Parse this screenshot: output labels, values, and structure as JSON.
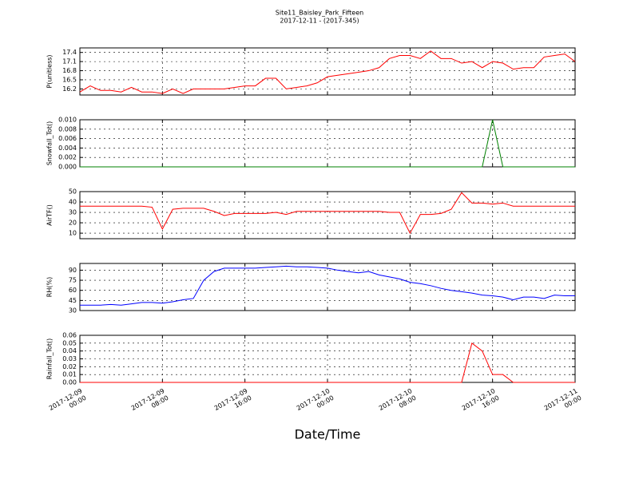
{
  "chart_data": [
    {
      "type": "line",
      "title": "Site11_Baisley_Park_Fifteen",
      "subtitle": "2017-12-11 - (2017-345)",
      "ylabel": "P(unitless)",
      "color": "#ff0000",
      "grid": true,
      "xlim": [
        "2017-12-09 00:00",
        "2017-12-11 00:00"
      ],
      "ylim": [
        16.0,
        17.55
      ],
      "yticks": [
        16.2,
        16.5,
        16.8,
        17.1,
        17.4
      ],
      "x": [
        "2017-12-09 00:00",
        "2017-12-09 01:00",
        "2017-12-09 02:00",
        "2017-12-09 03:00",
        "2017-12-09 04:00",
        "2017-12-09 05:00",
        "2017-12-09 06:00",
        "2017-12-09 07:00",
        "2017-12-09 08:00",
        "2017-12-09 09:00",
        "2017-12-09 10:00",
        "2017-12-09 11:00",
        "2017-12-09 12:00",
        "2017-12-09 13:00",
        "2017-12-09 14:00",
        "2017-12-09 15:00",
        "2017-12-09 16:00",
        "2017-12-09 17:00",
        "2017-12-09 18:00",
        "2017-12-09 19:00",
        "2017-12-09 20:00",
        "2017-12-09 21:00",
        "2017-12-09 22:00",
        "2017-12-09 23:00",
        "2017-12-10 00:00",
        "2017-12-10 01:00",
        "2017-12-10 02:00",
        "2017-12-10 03:00",
        "2017-12-10 04:00",
        "2017-12-10 05:00",
        "2017-12-10 06:00",
        "2017-12-10 07:00",
        "2017-12-10 08:00",
        "2017-12-10 09:00",
        "2017-12-10 10:00",
        "2017-12-10 11:00",
        "2017-12-10 12:00",
        "2017-12-10 13:00",
        "2017-12-10 14:00",
        "2017-12-10 15:00",
        "2017-12-10 16:00",
        "2017-12-10 17:00",
        "2017-12-10 18:00",
        "2017-12-10 19:00",
        "2017-12-10 20:00",
        "2017-12-10 21:00",
        "2017-12-10 22:00",
        "2017-12-10 23:00",
        "2017-12-11 00:00"
      ],
      "values": [
        16.1,
        16.3,
        16.15,
        16.15,
        16.1,
        16.25,
        16.1,
        16.1,
        16.05,
        16.2,
        16.05,
        16.2,
        16.2,
        16.2,
        16.2,
        16.25,
        16.3,
        16.3,
        16.55,
        16.55,
        16.2,
        16.25,
        16.3,
        16.4,
        16.6,
        16.65,
        16.7,
        16.75,
        16.8,
        16.9,
        17.2,
        17.3,
        17.3,
        17.2,
        17.45,
        17.2,
        17.2,
        17.05,
        17.1,
        16.9,
        17.1,
        17.05,
        16.85,
        16.9,
        16.9,
        17.25,
        17.3,
        17.35,
        17.1
      ]
    },
    {
      "type": "line",
      "ylabel": "Snowfall_Tot()",
      "color": "#008000",
      "grid": true,
      "xlim": [
        "2017-12-09 00:00",
        "2017-12-11 00:00"
      ],
      "ylim": [
        0,
        0.01
      ],
      "yticks": [
        {
          "value": 0,
          "label": "0.000"
        },
        0.002,
        0.004,
        0.006,
        0.008,
        {
          "value": 0.01,
          "label": "0.010"
        }
      ],
      "x": [
        "2017-12-09 00:00",
        "2017-12-09 01:00",
        "2017-12-09 02:00",
        "2017-12-09 03:00",
        "2017-12-09 04:00",
        "2017-12-09 05:00",
        "2017-12-09 06:00",
        "2017-12-09 07:00",
        "2017-12-09 08:00",
        "2017-12-09 09:00",
        "2017-12-09 10:00",
        "2017-12-09 11:00",
        "2017-12-09 12:00",
        "2017-12-09 13:00",
        "2017-12-09 14:00",
        "2017-12-09 15:00",
        "2017-12-09 16:00",
        "2017-12-09 17:00",
        "2017-12-09 18:00",
        "2017-12-09 19:00",
        "2017-12-09 20:00",
        "2017-12-09 21:00",
        "2017-12-09 22:00",
        "2017-12-09 23:00",
        "2017-12-10 00:00",
        "2017-12-10 01:00",
        "2017-12-10 02:00",
        "2017-12-10 03:00",
        "2017-12-10 04:00",
        "2017-12-10 05:00",
        "2017-12-10 06:00",
        "2017-12-10 07:00",
        "2017-12-10 08:00",
        "2017-12-10 09:00",
        "2017-12-10 10:00",
        "2017-12-10 11:00",
        "2017-12-10 12:00",
        "2017-12-10 13:00",
        "2017-12-10 14:00",
        "2017-12-10 15:00",
        "2017-12-10 16:00",
        "2017-12-10 17:00",
        "2017-12-10 18:00",
        "2017-12-10 19:00",
        "2017-12-10 20:00",
        "2017-12-10 21:00",
        "2017-12-10 22:00",
        "2017-12-10 23:00",
        "2017-12-11 00:00"
      ],
      "values": [
        0,
        0,
        0,
        0,
        0,
        0,
        0,
        0,
        0,
        0,
        0,
        0,
        0,
        0,
        0,
        0,
        0,
        0,
        0,
        0,
        0,
        0,
        0,
        0,
        0,
        0,
        0,
        0,
        0,
        0,
        0,
        0,
        0,
        0,
        0,
        0,
        0,
        0,
        0,
        0,
        0.01,
        0,
        0,
        0,
        0,
        0,
        0,
        0,
        0
      ]
    },
    {
      "type": "line",
      "ylabel": "AirTF()",
      "color": "#ff0000",
      "grid": true,
      "xlim": [
        "2017-12-09 00:00",
        "2017-12-11 00:00"
      ],
      "ylim": [
        4.7,
        50
      ],
      "yticks": [
        10,
        20,
        30,
        40,
        50
      ],
      "x": [
        "2017-12-09 00:00",
        "2017-12-09 01:00",
        "2017-12-09 02:00",
        "2017-12-09 03:00",
        "2017-12-09 04:00",
        "2017-12-09 05:00",
        "2017-12-09 06:00",
        "2017-12-09 07:00",
        "2017-12-09 08:00",
        "2017-12-09 09:00",
        "2017-12-09 10:00",
        "2017-12-09 11:00",
        "2017-12-09 12:00",
        "2017-12-09 13:00",
        "2017-12-09 14:00",
        "2017-12-09 15:00",
        "2017-12-09 16:00",
        "2017-12-09 17:00",
        "2017-12-09 18:00",
        "2017-12-09 19:00",
        "2017-12-09 20:00",
        "2017-12-09 21:00",
        "2017-12-09 22:00",
        "2017-12-09 23:00",
        "2017-12-10 00:00",
        "2017-12-10 01:00",
        "2017-12-10 02:00",
        "2017-12-10 03:00",
        "2017-12-10 04:00",
        "2017-12-10 05:00",
        "2017-12-10 06:00",
        "2017-12-10 07:00",
        "2017-12-10 08:00",
        "2017-12-10 09:00",
        "2017-12-10 10:00",
        "2017-12-10 11:00",
        "2017-12-10 12:00",
        "2017-12-10 13:00",
        "2017-12-10 14:00",
        "2017-12-10 15:00",
        "2017-12-10 16:00",
        "2017-12-10 17:00",
        "2017-12-10 18:00",
        "2017-12-10 19:00",
        "2017-12-10 20:00",
        "2017-12-10 21:00",
        "2017-12-10 22:00",
        "2017-12-10 23:00",
        "2017-12-11 00:00"
      ],
      "values": [
        36,
        36,
        36,
        36,
        36,
        36,
        36,
        35,
        14,
        33,
        34,
        34,
        34,
        31,
        27,
        29,
        29,
        29,
        29,
        30,
        28,
        31,
        31,
        31,
        31,
        31,
        31,
        31,
        31,
        31,
        30,
        30,
        10,
        28,
        28,
        29,
        33,
        49,
        39,
        39,
        38,
        39,
        36,
        36,
        36,
        36,
        36,
        36,
        36
      ]
    },
    {
      "type": "line",
      "ylabel": "RH(%)",
      "color": "#0000ff",
      "grid": true,
      "xlim": [
        "2017-12-09 00:00",
        "2017-12-11 00:00"
      ],
      "ylim": [
        30,
        100
      ],
      "yticks": [
        30,
        45,
        60,
        75,
        90
      ],
      "x": [
        "2017-12-09 00:00",
        "2017-12-09 01:00",
        "2017-12-09 02:00",
        "2017-12-09 03:00",
        "2017-12-09 04:00",
        "2017-12-09 05:00",
        "2017-12-09 06:00",
        "2017-12-09 07:00",
        "2017-12-09 08:00",
        "2017-12-09 09:00",
        "2017-12-09 10:00",
        "2017-12-09 11:00",
        "2017-12-09 12:00",
        "2017-12-09 13:00",
        "2017-12-09 14:00",
        "2017-12-09 15:00",
        "2017-12-09 16:00",
        "2017-12-09 17:00",
        "2017-12-09 18:00",
        "2017-12-09 19:00",
        "2017-12-09 20:00",
        "2017-12-09 21:00",
        "2017-12-09 22:00",
        "2017-12-09 23:00",
        "2017-12-10 00:00",
        "2017-12-10 01:00",
        "2017-12-10 02:00",
        "2017-12-10 03:00",
        "2017-12-10 04:00",
        "2017-12-10 05:00",
        "2017-12-10 06:00",
        "2017-12-10 07:00",
        "2017-12-10 08:00",
        "2017-12-10 09:00",
        "2017-12-10 10:00",
        "2017-12-10 11:00",
        "2017-12-10 12:00",
        "2017-12-10 13:00",
        "2017-12-10 14:00",
        "2017-12-10 15:00",
        "2017-12-10 16:00",
        "2017-12-10 17:00",
        "2017-12-10 18:00",
        "2017-12-10 19:00",
        "2017-12-10 20:00",
        "2017-12-10 21:00",
        "2017-12-10 22:00",
        "2017-12-10 23:00",
        "2017-12-11 00:00"
      ],
      "values": [
        38,
        38,
        38,
        39,
        38,
        40,
        42,
        42,
        41,
        43,
        46,
        48,
        75,
        88,
        93,
        93,
        93,
        93,
        94,
        95,
        96,
        95,
        95,
        94,
        93,
        90,
        88,
        86,
        88,
        83,
        80,
        77,
        72,
        70,
        67,
        63,
        60,
        58,
        56,
        53,
        52,
        50,
        46,
        50,
        50,
        48,
        53,
        52,
        52
      ]
    },
    {
      "type": "line",
      "ylabel": "Rainfall_Tot()",
      "xlabel": "Date/Time",
      "color": "#ff0000",
      "grid": true,
      "xlim": [
        "2017-12-09 00:00",
        "2017-12-11 00:00"
      ],
      "xticks": [
        "2017-12-09 00:00",
        "2017-12-09 08:00",
        "2017-12-09 16:00",
        "2017-12-10 00:00",
        "2017-12-10 08:00",
        "2017-12-10 16:00",
        "2017-12-11 00:00"
      ],
      "ylim": [
        0,
        0.06
      ],
      "yticks": [
        {
          "value": 0,
          "label": "0.00"
        },
        0.01,
        0.02,
        0.03,
        0.04,
        0.05,
        0.06
      ],
      "x": [
        "2017-12-09 00:00",
        "2017-12-09 01:00",
        "2017-12-09 02:00",
        "2017-12-09 03:00",
        "2017-12-09 04:00",
        "2017-12-09 05:00",
        "2017-12-09 06:00",
        "2017-12-09 07:00",
        "2017-12-09 08:00",
        "2017-12-09 09:00",
        "2017-12-09 10:00",
        "2017-12-09 11:00",
        "2017-12-09 12:00",
        "2017-12-09 13:00",
        "2017-12-09 14:00",
        "2017-12-09 15:00",
        "2017-12-09 16:00",
        "2017-12-09 17:00",
        "2017-12-09 18:00",
        "2017-12-09 19:00",
        "2017-12-09 20:00",
        "2017-12-09 21:00",
        "2017-12-09 22:00",
        "2017-12-09 23:00",
        "2017-12-10 00:00",
        "2017-12-10 01:00",
        "2017-12-10 02:00",
        "2017-12-10 03:00",
        "2017-12-10 04:00",
        "2017-12-10 05:00",
        "2017-12-10 06:00",
        "2017-12-10 07:00",
        "2017-12-10 08:00",
        "2017-12-10 09:00",
        "2017-12-10 10:00",
        "2017-12-10 11:00",
        "2017-12-10 12:00",
        "2017-12-10 13:00",
        "2017-12-10 14:00",
        "2017-12-10 15:00",
        "2017-12-10 16:00",
        "2017-12-10 17:00",
        "2017-12-10 18:00",
        "2017-12-10 19:00",
        "2017-12-10 20:00",
        "2017-12-10 21:00",
        "2017-12-10 22:00",
        "2017-12-10 23:00",
        "2017-12-11 00:00"
      ],
      "values": [
        0,
        0,
        0,
        0,
        0,
        0,
        0,
        0,
        0,
        0,
        0,
        0,
        0,
        0,
        0,
        0,
        0,
        0,
        0,
        0,
        0,
        0,
        0,
        0,
        0,
        0,
        0,
        0,
        0,
        0,
        0,
        0,
        0,
        0,
        0,
        0,
        0,
        0,
        0.05,
        0.04,
        0.01,
        0.01,
        0,
        0,
        0,
        0,
        0,
        0,
        0
      ]
    }
  ]
}
